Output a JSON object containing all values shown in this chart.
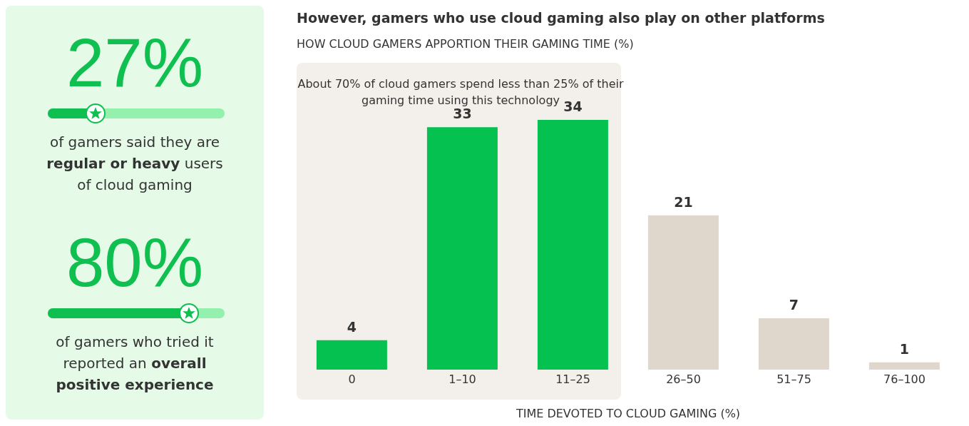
{
  "chart_data": [
    {
      "type": "other",
      "categories": [
        "of gamers said they are **regular or heavy** users of cloud gaming",
        "of gamers who tried it reported an **overall positive experience**"
      ],
      "values": [
        27,
        80
      ],
      "value_labels": [
        "27%",
        "80%"
      ]
    },
    {
      "type": "bar",
      "title": "However, gamers who use cloud gaming also play on other platforms",
      "subtitle": "HOW CLOUD GAMERS APPORTION THEIR GAMING TIME (%)",
      "xlabel": "TIME DEVOTED TO CLOUD GAMING (%)",
      "categories": [
        "0",
        "1–10",
        "11–25",
        "26–50",
        "51–75",
        "76–100"
      ],
      "values": [
        4,
        33,
        34,
        21,
        7,
        1
      ],
      "colors": [
        "#05c150",
        "#05c150",
        "#05c150",
        "#e0d7cc",
        "#e0d7cc",
        "#e0d7cc"
      ],
      "data_labels": true,
      "bands": [
        {
          "axis": "x",
          "from": "0",
          "to": "11–25",
          "label": "About 70% of cloud gamers spend less than 25% of their gaming time using this technology",
          "color": "#f3f0eb"
        }
      ]
    }
  ]
}
